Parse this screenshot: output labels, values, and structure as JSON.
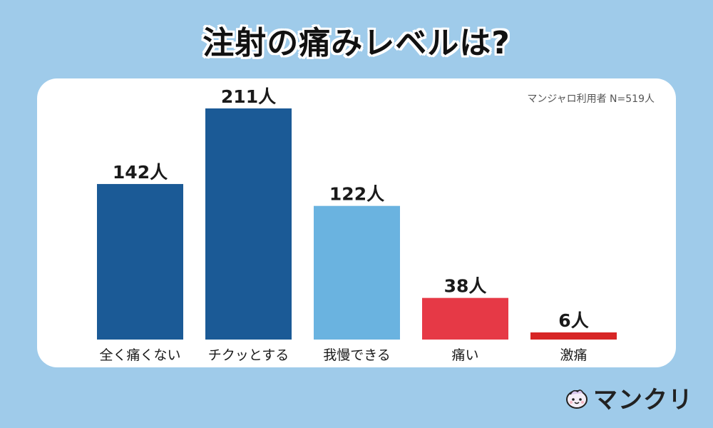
{
  "header": {
    "title": "注射の痛みレベルは?"
  },
  "note": "マンジャロ利用者 N=519人",
  "brand": {
    "name": "マンクリ",
    "logo_icon": "cute-mascot-icon"
  },
  "chart_data": {
    "type": "bar",
    "title": "注射の痛みレベルは?",
    "categories": [
      "全く痛くない",
      "チクッとする",
      "我慢できる",
      "痛い",
      "激痛"
    ],
    "values": [
      142,
      211,
      122,
      38,
      6
    ],
    "data_labels": [
      "142人",
      "211人",
      "122人",
      "38人",
      "6人"
    ],
    "colors": [
      "#1b5a96",
      "#1b5a96",
      "#6ab3e0",
      "#e63946",
      "#d72626"
    ],
    "ylim": [
      0,
      211
    ],
    "grid": false,
    "legend": "none"
  }
}
